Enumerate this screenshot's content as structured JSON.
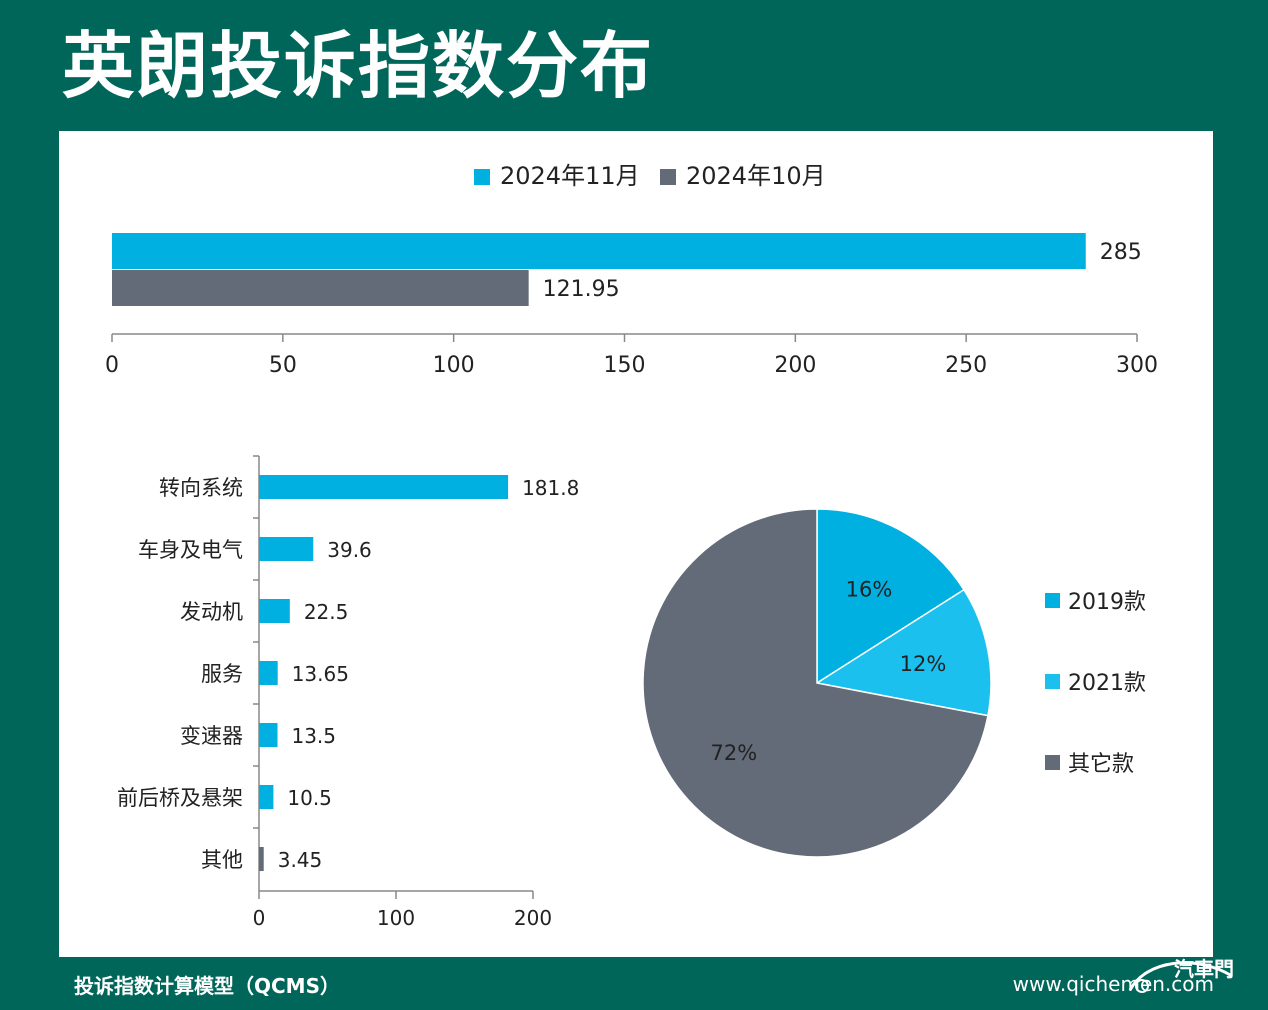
{
  "page": {
    "title": "英朗投诉指数分布",
    "footer_left": "投诉指数计算模型（QCMS）",
    "footer_right": "www.qichemen.com",
    "logo_text": "汽車門"
  },
  "colors": {
    "background": "#00665a",
    "blue": "#00b0e0",
    "light_blue": "#1cc0ee",
    "gray": "#636b78"
  },
  "chart_data": [
    {
      "type": "bar",
      "orientation": "horizontal",
      "legend_position": "top",
      "series": [
        {
          "name": "2024年11月",
          "values": [
            285
          ],
          "color": "#00b0e0"
        },
        {
          "name": "2024年10月",
          "values": [
            121.95
          ],
          "color": "#636b78"
        }
      ],
      "value_labels": [
        "285",
        "121.95"
      ],
      "xlim": [
        0,
        300
      ],
      "xticks": [
        "0",
        "50",
        "100",
        "150",
        "200",
        "250",
        "300"
      ]
    },
    {
      "type": "bar",
      "orientation": "horizontal",
      "categories": [
        "转向系统",
        "车身及电气",
        "发动机",
        "服务",
        "变速器",
        "前后桥及悬架",
        "其他"
      ],
      "values": [
        181.8,
        39.6,
        22.5,
        13.65,
        13.5,
        10.5,
        3.45
      ],
      "value_labels": [
        "181.8",
        "39.6",
        "22.5",
        "13.65",
        "13.5",
        "10.5",
        "3.45"
      ],
      "bar_colors": [
        "#00b0e0",
        "#00b0e0",
        "#00b0e0",
        "#00b0e0",
        "#00b0e0",
        "#00b0e0",
        "#636b78"
      ],
      "xlim": [
        0,
        200
      ],
      "xticks": [
        "0",
        "100",
        "200"
      ]
    },
    {
      "type": "pie",
      "labels": [
        "2019款",
        "2021款",
        "其它款"
      ],
      "values": [
        16,
        12,
        72
      ],
      "value_labels": [
        "16%",
        "12%",
        "72%"
      ],
      "colors": [
        "#00b0e0",
        "#1cc0ee",
        "#636b78"
      ],
      "legend_position": "right"
    }
  ]
}
